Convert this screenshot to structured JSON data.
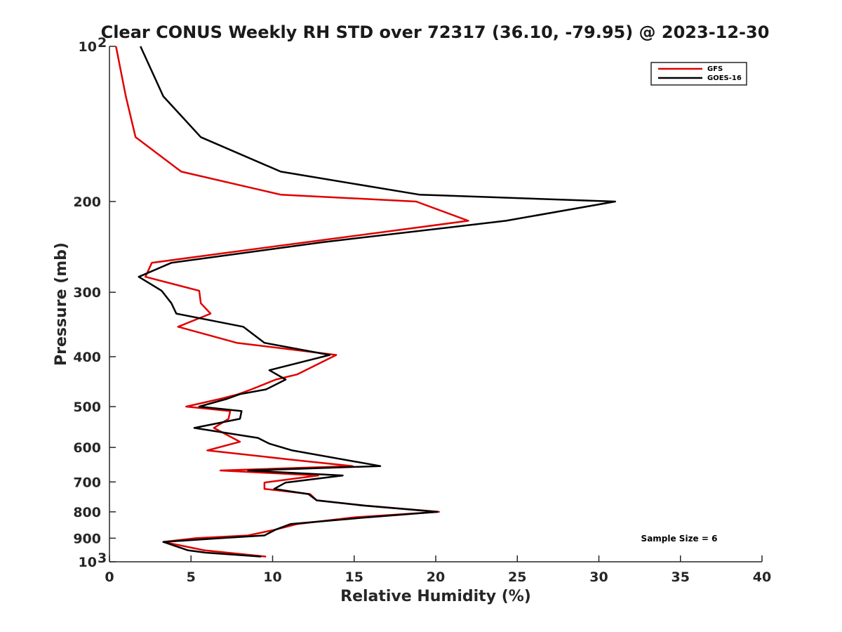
{
  "chart_data": {
    "type": "line",
    "title": "Clear CONUS Weekly RH STD over 72317 (36.10, -79.95) @ 2023-12-30",
    "xlabel": "Relative Humidity (%)",
    "ylabel": "Pressure (mb)",
    "xlim": [
      0,
      40
    ],
    "ylim": [
      100,
      1000
    ],
    "y_scale": "log",
    "y_reversed": true,
    "grid": false,
    "legend_position": "top-right",
    "x_ticks": [
      "0",
      "5",
      "10",
      "15",
      "20",
      "25",
      "30",
      "35",
      "40"
    ],
    "y_ticks": [
      {
        "value": 100,
        "label": "10",
        "sup": "2"
      },
      {
        "value": 200,
        "label": "200",
        "sup": ""
      },
      {
        "value": 300,
        "label": "300",
        "sup": ""
      },
      {
        "value": 400,
        "label": "400",
        "sup": ""
      },
      {
        "value": 500,
        "label": "500",
        "sup": ""
      },
      {
        "value": 600,
        "label": "600",
        "sup": ""
      },
      {
        "value": 700,
        "label": "700",
        "sup": ""
      },
      {
        "value": 800,
        "label": "800",
        "sup": ""
      },
      {
        "value": 900,
        "label": "900",
        "sup": ""
      },
      {
        "value": 1000,
        "label": "10",
        "sup": "3"
      }
    ],
    "annotation": "Sample Size = 6",
    "series": [
      {
        "name": "GFS",
        "color": "#e00000",
        "points": [
          [
            0.4,
            100
          ],
          [
            1.0,
            125
          ],
          [
            1.6,
            150
          ],
          [
            4.4,
            175
          ],
          [
            10.5,
            194
          ],
          [
            18.8,
            200
          ],
          [
            22.0,
            218
          ],
          [
            12.0,
            240
          ],
          [
            2.6,
            263
          ],
          [
            2.2,
            280
          ],
          [
            5.5,
            298
          ],
          [
            5.6,
            315
          ],
          [
            6.2,
            330
          ],
          [
            4.2,
            350
          ],
          [
            7.8,
            376
          ],
          [
            13.9,
            397
          ],
          [
            11.5,
            433
          ],
          [
            10.2,
            443
          ],
          [
            8.7,
            463
          ],
          [
            7.9,
            473
          ],
          [
            6.8,
            483
          ],
          [
            4.7,
            500
          ],
          [
            7.4,
            510
          ],
          [
            7.3,
            528
          ],
          [
            6.4,
            550
          ],
          [
            8.0,
            585
          ],
          [
            6.0,
            608
          ],
          [
            11.0,
            633
          ],
          [
            14.9,
            652
          ],
          [
            6.8,
            665
          ],
          [
            12.8,
            680
          ],
          [
            9.5,
            702
          ],
          [
            9.5,
            722
          ],
          [
            12.3,
            739
          ],
          [
            12.7,
            760
          ],
          [
            15.7,
            778
          ],
          [
            20.2,
            800
          ],
          [
            15.0,
            820
          ],
          [
            11.5,
            845
          ],
          [
            10.2,
            866
          ],
          [
            8.5,
            889
          ],
          [
            5.3,
            900
          ],
          [
            3.3,
            915
          ],
          [
            5.8,
            950
          ],
          [
            9.6,
            977
          ]
        ]
      },
      {
        "name": "GOES-16",
        "color": "#000000",
        "points": [
          [
            1.9,
            100
          ],
          [
            3.3,
            125
          ],
          [
            5.6,
            150
          ],
          [
            10.5,
            175
          ],
          [
            19.0,
            194
          ],
          [
            31.0,
            200
          ],
          [
            24.3,
            218
          ],
          [
            13.0,
            240
          ],
          [
            3.8,
            263
          ],
          [
            1.8,
            280
          ],
          [
            3.2,
            298
          ],
          [
            3.8,
            315
          ],
          [
            4.1,
            330
          ],
          [
            8.2,
            350
          ],
          [
            9.5,
            376
          ],
          [
            13.5,
            397
          ],
          [
            9.8,
            425
          ],
          [
            10.8,
            443
          ],
          [
            9.6,
            463
          ],
          [
            8.0,
            473
          ],
          [
            7.2,
            483
          ],
          [
            5.5,
            500
          ],
          [
            8.1,
            510
          ],
          [
            8.0,
            528
          ],
          [
            5.2,
            550
          ],
          [
            9.1,
            575
          ],
          [
            9.8,
            590
          ],
          [
            11.2,
            608
          ],
          [
            16.6,
            652
          ],
          [
            8.5,
            665
          ],
          [
            14.3,
            680
          ],
          [
            10.8,
            702
          ],
          [
            10.1,
            722
          ],
          [
            12.2,
            739
          ],
          [
            12.7,
            760
          ],
          [
            15.6,
            778
          ],
          [
            20.1,
            800
          ],
          [
            15.8,
            820
          ],
          [
            11.1,
            845
          ],
          [
            10.2,
            866
          ],
          [
            9.5,
            889
          ],
          [
            6.8,
            900
          ],
          [
            3.3,
            915
          ],
          [
            4.8,
            950
          ],
          [
            5.9,
            960
          ],
          [
            9.3,
            977
          ]
        ]
      }
    ]
  }
}
